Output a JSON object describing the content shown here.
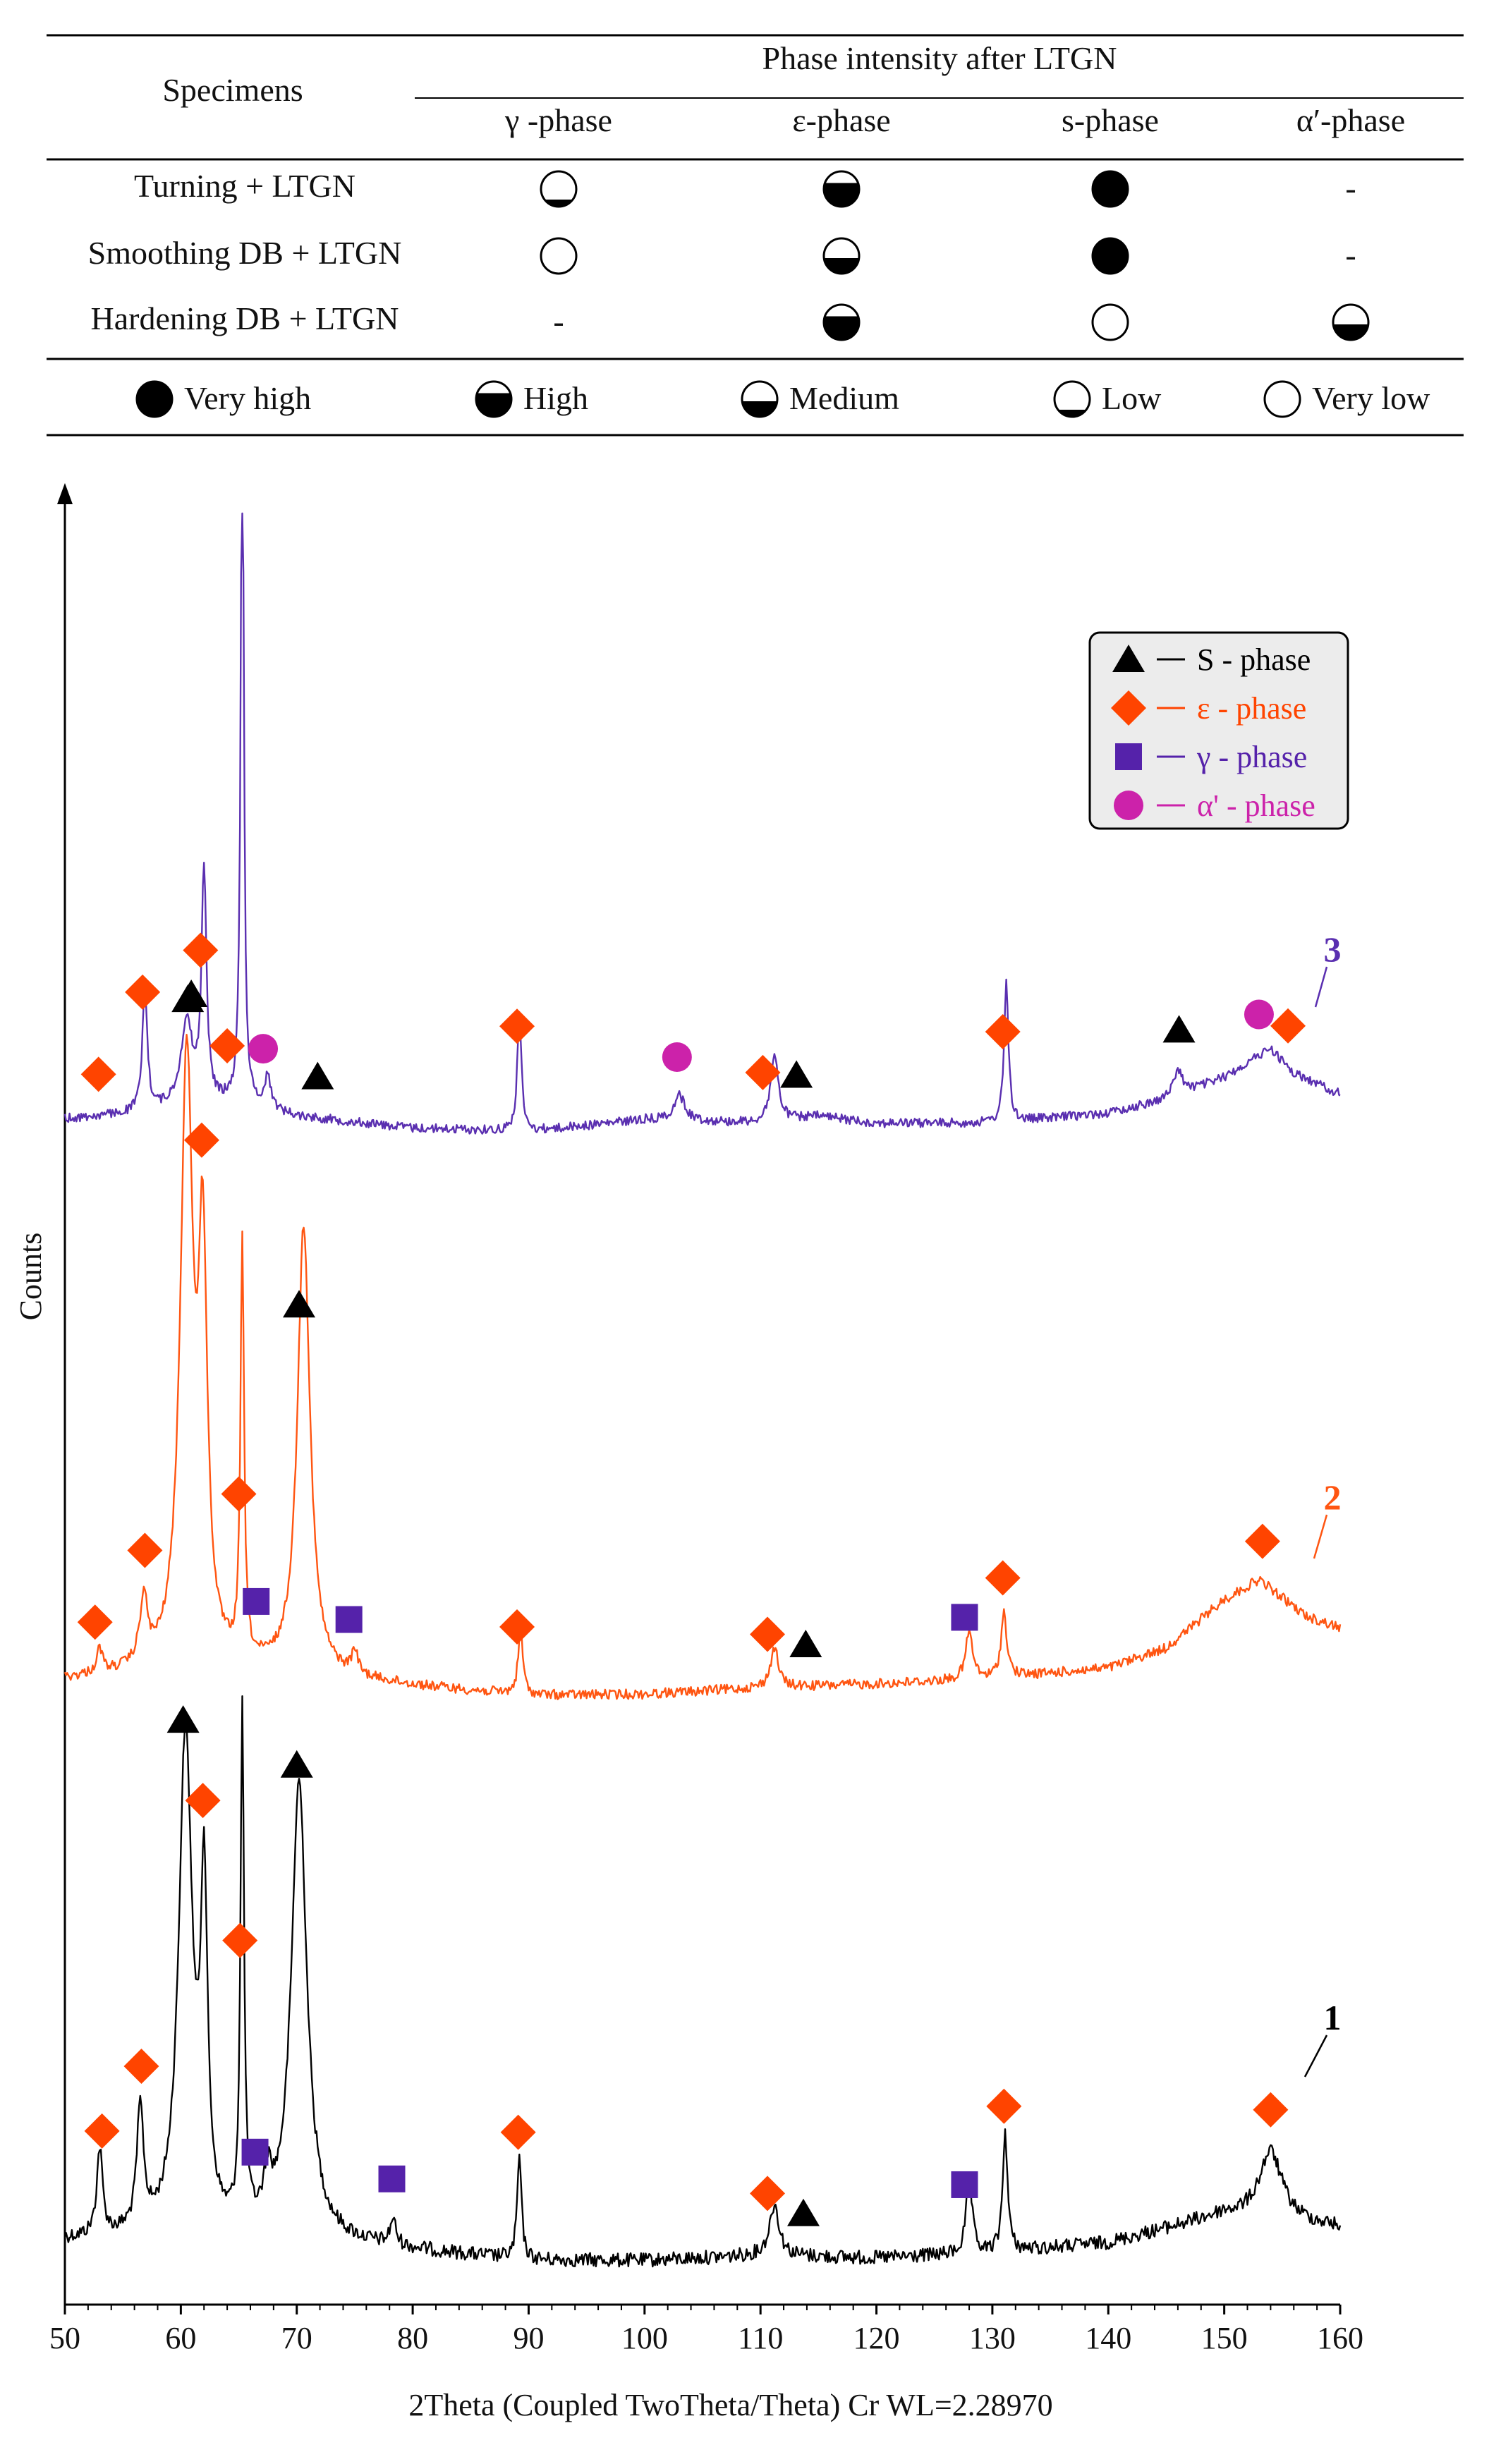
{
  "table": {
    "header_specimens": "Specimens",
    "header_group": "Phase intensity after LTGN",
    "columns": [
      "γ -phase",
      "ε-phase",
      "s-phase",
      "α′-phase"
    ],
    "rows": [
      {
        "specimen": "Turning + LTGN",
        "cells": [
          "low",
          "high",
          "very_high",
          "-"
        ]
      },
      {
        "specimen": "Smoothing DB + LTGN",
        "cells": [
          "very_low",
          "medium",
          "very_high",
          "-"
        ]
      },
      {
        "specimen": "Hardening DB + LTGN",
        "cells": [
          "-",
          "high",
          "very_low",
          "medium"
        ]
      }
    ],
    "key": [
      {
        "level": "very_high",
        "label": "Very high"
      },
      {
        "level": "high",
        "label": "High"
      },
      {
        "level": "medium",
        "label": "Medium"
      },
      {
        "level": "low",
        "label": "Low"
      },
      {
        "level": "very_low",
        "label": "Very low"
      }
    ]
  },
  "chart_data": {
    "type": "line",
    "xlabel": "2Theta (Coupled TwoTheta/Theta) Cr WL=2.28970",
    "ylabel": "Counts",
    "xlim": [
      50,
      160
    ],
    "xticks": [
      "50",
      "60",
      "70",
      "80",
      "90",
      "100",
      "110",
      "120",
      "130",
      "140",
      "150",
      "160"
    ],
    "legend": {
      "position": "top-right",
      "entries": [
        {
          "marker": "triangle",
          "label": "S - phase",
          "color": "#000000"
        },
        {
          "marker": "diamond",
          "label": "ε - phase",
          "color": "#ff4400"
        },
        {
          "marker": "square",
          "label": "γ - phase",
          "color": "#5522aa"
        },
        {
          "marker": "circle",
          "label": "α' - phase",
          "color": "#cc22aa"
        }
      ]
    },
    "series": [
      {
        "name": "1",
        "color": "#000000",
        "baseline_points": [
          [
            50,
            6.0
          ],
          [
            55,
            6.2
          ],
          [
            70,
            6.0
          ],
          [
            80,
            4.8
          ],
          [
            90,
            3.6
          ],
          [
            100,
            3.6
          ],
          [
            110,
            4.2
          ],
          [
            120,
            3.9
          ],
          [
            130,
            4.5
          ],
          [
            140,
            5.7
          ],
          [
            150,
            9.0
          ],
          [
            160,
            7.5
          ]
        ],
        "peaks": [
          [
            53.0,
            10,
            0.3
          ],
          [
            56.5,
            14,
            0.35
          ],
          [
            60.4,
            58,
            0.7
          ],
          [
            62.0,
            38,
            0.35
          ],
          [
            65.3,
            60,
            0.18
          ],
          [
            67.5,
            5,
            0.4
          ],
          [
            70.2,
            53,
            0.8
          ],
          [
            78.3,
            3,
            0.3
          ],
          [
            89.2,
            12,
            0.22
          ],
          [
            111.2,
            6,
            0.5
          ],
          [
            128.0,
            9,
            0.3
          ],
          [
            131.1,
            14,
            0.25
          ],
          [
            154.0,
            8,
            1.2
          ]
        ],
        "markers": [
          {
            "type": "diamond",
            "x": 53.2
          },
          {
            "type": "diamond",
            "x": 56.6
          },
          {
            "type": "triangle",
            "x": 60.2
          },
          {
            "type": "diamond",
            "x": 61.9
          },
          {
            "type": "diamond",
            "x": 65.1
          },
          {
            "type": "square",
            "x": 66.4
          },
          {
            "type": "triangle",
            "x": 70.0
          },
          {
            "type": "square",
            "x": 78.2
          },
          {
            "type": "diamond",
            "x": 89.1
          },
          {
            "type": "diamond",
            "x": 110.6
          },
          {
            "type": "triangle",
            "x": 113.7
          },
          {
            "type": "square",
            "x": 127.6
          },
          {
            "type": "diamond",
            "x": 131.0
          },
          {
            "type": "diamond",
            "x": 154.0
          }
        ]
      },
      {
        "name": "2",
        "color": "#ff5511",
        "baseline_points": [
          [
            50,
            4.0
          ],
          [
            55,
            4.5
          ],
          [
            65,
            5.0
          ],
          [
            72,
            4.2
          ],
          [
            80,
            3.2
          ],
          [
            90,
            2.0
          ],
          [
            100,
            2.2
          ],
          [
            110,
            3.0
          ],
          [
            120,
            3.5
          ],
          [
            130,
            4.2
          ],
          [
            140,
            5.5
          ],
          [
            145,
            8.0
          ],
          [
            150,
            14.0
          ],
          [
            153,
            16.5
          ],
          [
            157,
            12.0
          ],
          [
            160,
            10.5
          ]
        ],
        "peaks": [
          [
            53.0,
            3,
            0.3
          ],
          [
            56.8,
            8,
            0.4
          ],
          [
            60.5,
            75,
            0.65
          ],
          [
            61.9,
            48,
            0.45
          ],
          [
            65.3,
            52,
            0.18
          ],
          [
            70.6,
            56,
            0.65
          ],
          [
            75,
            3,
            0.3
          ],
          [
            89.3,
            8,
            0.25
          ],
          [
            111.2,
            5,
            0.4
          ],
          [
            128.0,
            6,
            0.35
          ],
          [
            131.0,
            8,
            0.3
          ]
        ],
        "markers": [
          {
            "type": "diamond",
            "x": 52.6
          },
          {
            "type": "diamond",
            "x": 56.9
          },
          {
            "type": "triangle",
            "x": 60.6
          },
          {
            "type": "diamond",
            "x": 61.8
          },
          {
            "type": "diamond",
            "x": 65.0
          },
          {
            "type": "square",
            "x": 66.5
          },
          {
            "type": "triangle",
            "x": 70.2
          },
          {
            "type": "square",
            "x": 74.5
          },
          {
            "type": "diamond",
            "x": 89.0
          },
          {
            "type": "diamond",
            "x": 110.6
          },
          {
            "type": "triangle",
            "x": 113.9
          },
          {
            "type": "square",
            "x": 127.6
          },
          {
            "type": "diamond",
            "x": 130.9
          },
          {
            "type": "diamond",
            "x": 153.3
          }
        ]
      },
      {
        "name": "3",
        "color": "#5a2fb0",
        "baseline_points": [
          [
            50,
            3.5
          ],
          [
            55,
            4.0
          ],
          [
            60,
            5.0
          ],
          [
            65,
            5.5
          ],
          [
            70,
            3.8
          ],
          [
            80,
            2.4
          ],
          [
            90,
            2.0
          ],
          [
            100,
            3.4
          ],
          [
            110,
            3.0
          ],
          [
            115,
            3.8
          ],
          [
            120,
            3.0
          ],
          [
            130,
            3.0
          ],
          [
            140,
            4.2
          ],
          [
            145,
            5.8
          ],
          [
            150,
            8.5
          ],
          [
            154,
            12.0
          ],
          [
            156,
            9.0
          ],
          [
            160,
            6.5
          ]
        ],
        "peaks": [
          [
            56.9,
            15,
            0.25
          ],
          [
            60.5,
            10,
            0.6
          ],
          [
            62.0,
            28,
            0.25
          ],
          [
            65.3,
            92,
            0.15
          ],
          [
            67.5,
            4,
            0.3
          ],
          [
            89.2,
            14,
            0.22
          ],
          [
            103,
            3,
            0.6
          ],
          [
            111.2,
            8,
            0.4
          ],
          [
            131.2,
            17,
            0.22
          ],
          [
            146,
            3,
            0.5
          ]
        ],
        "markers": [
          {
            "type": "diamond",
            "x": 52.9
          },
          {
            "type": "diamond",
            "x": 56.7
          },
          {
            "type": "triangle",
            "x": 60.9
          },
          {
            "type": "diamond",
            "x": 61.7
          },
          {
            "type": "diamond",
            "x": 64.0
          },
          {
            "type": "circle",
            "x": 67.1
          },
          {
            "type": "triangle",
            "x": 71.8
          },
          {
            "type": "diamond",
            "x": 89.0
          },
          {
            "type": "circle",
            "x": 102.8
          },
          {
            "type": "diamond",
            "x": 110.2
          },
          {
            "type": "triangle",
            "x": 113.1
          },
          {
            "type": "diamond",
            "x": 130.9
          },
          {
            "type": "triangle",
            "x": 146.1
          },
          {
            "type": "circle",
            "x": 153.0
          },
          {
            "type": "diamond",
            "x": 155.5
          }
        ]
      }
    ]
  },
  "colors": {
    "S_phase": "#000000",
    "epsilon_phase": "#ff4400",
    "gamma_phase": "#5522aa",
    "alpha_prime_phase": "#cc22aa",
    "axis": "#000000"
  }
}
